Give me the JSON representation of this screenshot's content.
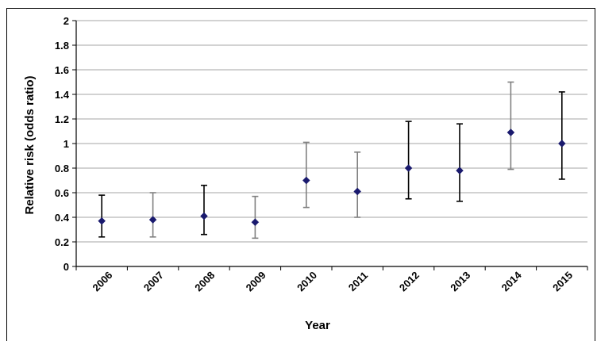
{
  "chart_data": {
    "type": "scatter",
    "xlabel": "Year",
    "ylabel": "Relative risk (odds ratio)",
    "ylim": [
      0,
      2
    ],
    "yticks": [
      "0",
      "0.2",
      "0.4",
      "0.6",
      "0.8",
      "1",
      "1.2",
      "1.4",
      "1.6",
      "1.8",
      "2"
    ],
    "grid": "horizontal",
    "marker_color": "#1a1a6e",
    "errorbar_colors": {
      "light": "#808080",
      "dark": "#000000"
    },
    "categories": [
      "2006",
      "2007",
      "2008",
      "2009",
      "2010",
      "2011",
      "2012",
      "2013",
      "2014",
      "2015"
    ],
    "series": [
      {
        "values": [
          0.37,
          0.38,
          0.41,
          0.36,
          0.7,
          0.61,
          0.8,
          0.78,
          1.09,
          1.0
        ],
        "lower": [
          0.24,
          0.24,
          0.26,
          0.23,
          0.48,
          0.4,
          0.55,
          0.53,
          0.79,
          0.71
        ],
        "upper": [
          0.58,
          0.6,
          0.66,
          0.57,
          1.01,
          0.93,
          1.18,
          1.16,
          1.5,
          1.42
        ],
        "errorbar_tone": [
          "dark",
          "light",
          "dark",
          "light",
          "light",
          "light",
          "dark",
          "dark",
          "light",
          "dark"
        ]
      }
    ]
  }
}
